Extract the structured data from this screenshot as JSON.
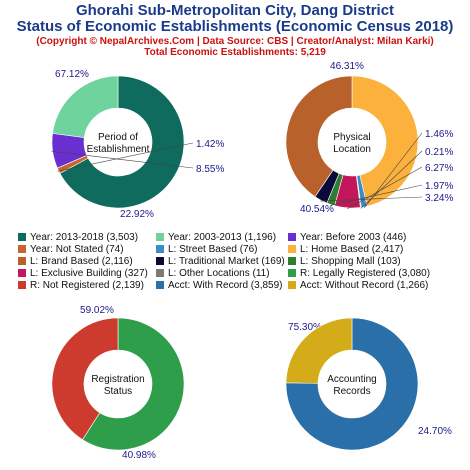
{
  "header": {
    "title_line1": "Ghorahi Sub-Metropolitan City, Dang District",
    "title_line2": "Status of Economic Establishments (Economic Census 2018)",
    "copyright": "(Copyright © NepalArchives.Com | Data Source: CBS | Creator/Analyst: Milan Karki)",
    "total": "Total Economic Establishments: 5,219"
  },
  "chart_data": [
    {
      "type": "pie",
      "center_label": [
        "Period of",
        "Establishment"
      ],
      "slices": [
        {
          "label": "Year: 2013-2018",
          "value": 3503,
          "pct": "67.12%",
          "color": "#0f6b5e"
        },
        {
          "label": "Year: Not Stated",
          "value": 74,
          "pct": "1.42%",
          "color": "#c9652a"
        },
        {
          "label": "Year: Before 2003",
          "value": 446,
          "pct": "8.55%",
          "color": "#6a2fd1"
        },
        {
          "label": "Year: 2003-2013",
          "value": 1196,
          "pct": "22.92%",
          "color": "#6fd39e"
        }
      ]
    },
    {
      "type": "pie",
      "center_label": [
        "Physical",
        "Location"
      ],
      "slices": [
        {
          "label": "L: Home Based",
          "value": 2417,
          "pct": "46.31%",
          "color": "#fbb13c"
        },
        {
          "label": "L: Street Based",
          "value": 76,
          "pct": "1.46%",
          "color": "#3a8dc9"
        },
        {
          "label": "L: Other Locations",
          "value": 11,
          "pct": "0.21%",
          "color": "#7a7a7a"
        },
        {
          "label": "L: Exclusive Building",
          "value": 327,
          "pct": "6.27%",
          "color": "#c2185b"
        },
        {
          "label": "L: Shopping Mall",
          "value": 103,
          "pct": "1.97%",
          "color": "#2e7d32"
        },
        {
          "label": "L: Traditional Market",
          "value": 169,
          "pct": "3.24%",
          "color": "#0a0a3a"
        },
        {
          "label": "L: Brand Based",
          "value": 2116,
          "pct": "40.54%",
          "color": "#b9612a"
        }
      ]
    },
    {
      "type": "pie",
      "center_label": [
        "Registration",
        "Status"
      ],
      "slices": [
        {
          "label": "R: Legally Registered",
          "value": 3080,
          "pct": "59.02%",
          "color": "#2e9e4a"
        },
        {
          "label": "R: Not Registered",
          "value": 2139,
          "pct": "40.98%",
          "color": "#cc3b2e"
        }
      ]
    },
    {
      "type": "pie",
      "center_label": [
        "Accounting",
        "Records"
      ],
      "slices": [
        {
          "label": "Acct: With Record",
          "value": 3859,
          "pct": "75.30%",
          "color": "#2a6fa8"
        },
        {
          "label": "Acct: Without Record",
          "value": 1266,
          "pct": "24.70%",
          "color": "#d4ac1a"
        }
      ]
    }
  ],
  "legend": [
    {
      "text": "Year: 2013-2018 (3,503)",
      "color": "#0f6b5e"
    },
    {
      "text": "Year: 2003-2013 (1,196)",
      "color": "#6fd39e"
    },
    {
      "text": "Year: Before 2003 (446)",
      "color": "#6a2fd1"
    },
    {
      "text": "Year: Not Stated (74)",
      "color": "#c9652a"
    },
    {
      "text": "L: Street Based (76)",
      "color": "#3a8dc9"
    },
    {
      "text": "L: Home Based (2,417)",
      "color": "#fbb13c"
    },
    {
      "text": "L: Brand Based (2,116)",
      "color": "#b9612a"
    },
    {
      "text": "L: Traditional Market (169)",
      "color": "#0a0a3a"
    },
    {
      "text": "L: Shopping Mall (103)",
      "color": "#2e7d32"
    },
    {
      "text": "L: Exclusive Building (327)",
      "color": "#c2185b"
    },
    {
      "text": "L: Other Locations (11)",
      "color": "#7a7a7a"
    },
    {
      "text": "R: Legally Registered (3,080)",
      "color": "#2e9e4a"
    },
    {
      "text": "R: Not Registered (2,139)",
      "color": "#cc3b2e"
    },
    {
      "text": "Acct: With Record (3,859)",
      "color": "#2a6fa8"
    },
    {
      "text": "Acct: Without Record (1,266)",
      "color": "#d4ac1a"
    }
  ]
}
